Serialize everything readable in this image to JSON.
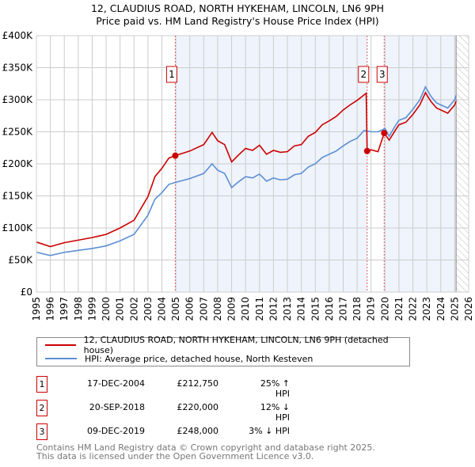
{
  "chart_data": {
    "type": "line",
    "title": "12, CLAUDIUS ROAD, NORTH HYKEHAM, LINCOLN, LN6 9PH",
    "subtitle": "Price paid vs. HM Land Registry's House Price Index (HPI)",
    "xlim": [
      1995,
      2026
    ],
    "ylim": [
      0,
      400000
    ],
    "x_ticks": [
      "1995",
      "1996",
      "1997",
      "1998",
      "1999",
      "2000",
      "2001",
      "2002",
      "2003",
      "2004",
      "2005",
      "2006",
      "2007",
      "2008",
      "2009",
      "2010",
      "2011",
      "2012",
      "2013",
      "2014",
      "2015",
      "2016",
      "2017",
      "2018",
      "2019",
      "2020",
      "2021",
      "2022",
      "2023",
      "2024",
      "2025",
      "2026"
    ],
    "y_ticks": [
      {
        "v": 0,
        "l": "£0"
      },
      {
        "v": 50000,
        "l": "£50K"
      },
      {
        "v": 100000,
        "l": "£100K"
      },
      {
        "v": 150000,
        "l": "£150K"
      },
      {
        "v": 200000,
        "l": "£200K"
      },
      {
        "v": 250000,
        "l": "£250K"
      },
      {
        "v": 300000,
        "l": "£300K"
      },
      {
        "v": 350000,
        "l": "£350K"
      },
      {
        "v": 400000,
        "l": "£400K"
      }
    ],
    "grid": true,
    "series": [
      {
        "name": "12, CLAUDIUS ROAD, NORTH HYKEHAM, LINCOLN, LN6 9PH (detached house)",
        "color": "#cc0000",
        "x": [
          1995,
          1996,
          1997,
          1998,
          1999,
          2000,
          2001,
          2002,
          2003,
          2003.5,
          2004,
          2004.5,
          2004.96,
          2006,
          2007,
          2007.6,
          2008,
          2008.5,
          2009,
          2009.5,
          2010,
          2010.5,
          2011,
          2011.5,
          2012,
          2012.5,
          2013,
          2013.5,
          2014,
          2014.5,
          2015,
          2015.5,
          2016,
          2016.5,
          2017,
          2017.5,
          2018,
          2018.65,
          2018.72,
          2019,
          2019.5,
          2019.94,
          2020.3,
          2020.7,
          2021,
          2021.5,
          2022,
          2022.5,
          2022.9,
          2023.3,
          2023.7,
          2024,
          2024.5,
          2025,
          2025.1
        ],
        "y": [
          78000,
          71000,
          77000,
          81000,
          85000,
          90000,
          100000,
          112000,
          149000,
          180000,
          193000,
          209000,
          212750,
          220000,
          230000,
          249000,
          236000,
          230000,
          203000,
          214000,
          224000,
          221000,
          229000,
          215000,
          221000,
          218000,
          219000,
          228000,
          230000,
          243000,
          249000,
          261000,
          267000,
          274000,
          284000,
          292000,
          299000,
          310000,
          220000,
          222000,
          219000,
          248000,
          237000,
          251000,
          261000,
          265000,
          277000,
          292000,
          311000,
          297000,
          287000,
          284000,
          279000,
          292000,
          298000
        ]
      },
      {
        "name": "HPI: Average price, detached house, North Kesteven",
        "color": "#5b8fd4",
        "x": [
          1995,
          1996,
          1997,
          1998,
          1999,
          2000,
          2001,
          2002,
          2003,
          2003.5,
          2004,
          2004.5,
          2004.96,
          2006,
          2007,
          2007.6,
          2008,
          2008.5,
          2009,
          2009.5,
          2010,
          2010.5,
          2011,
          2011.5,
          2012,
          2012.5,
          2013,
          2013.5,
          2014,
          2014.5,
          2015,
          2015.5,
          2016,
          2016.5,
          2017,
          2017.5,
          2018,
          2018.5,
          2019,
          2019.5,
          2020,
          2020.3,
          2020.7,
          2021,
          2021.5,
          2022,
          2022.5,
          2022.9,
          2023.3,
          2023.7,
          2024,
          2024.5,
          2025,
          2025.1
        ],
        "y": [
          62000,
          57000,
          62000,
          65000,
          68000,
          72000,
          80000,
          90000,
          120000,
          145000,
          155000,
          168000,
          171000,
          177000,
          185000,
          200000,
          190000,
          185000,
          163000,
          172000,
          180000,
          178000,
          184000,
          173000,
          178000,
          175000,
          176000,
          183000,
          185000,
          195000,
          200000,
          210000,
          215000,
          220000,
          228000,
          235000,
          240000,
          252000,
          250000,
          250000,
          255000,
          243000,
          258000,
          268000,
          272000,
          285000,
          300000,
          320000,
          305000,
          295000,
          292000,
          287000,
          300000,
          307000
        ]
      }
    ],
    "sales": [
      {
        "n": "1",
        "x": 2004.96,
        "y": 212750,
        "date": "17-DEC-2004",
        "price": "£212,750",
        "hpi": "25% ↑ HPI"
      },
      {
        "n": "2",
        "x": 2018.72,
        "y": 220000,
        "date": "20-SEP-2018",
        "price": "£220,000",
        "hpi": "12% ↓ HPI"
      },
      {
        "n": "3",
        "x": 2019.94,
        "y": 248000,
        "date": "09-DEC-2019",
        "price": "£248,000",
        "hpi": "3% ↓ HPI"
      }
    ],
    "shaded_ranges": [
      [
        2004.96,
        2018.72
      ],
      [
        2019.94,
        2025.1
      ]
    ],
    "forecast_from": 2025.1
  },
  "legend": {
    "property": "12, CLAUDIUS ROAD, NORTH HYKEHAM, LINCOLN, LN6 9PH (detached house)",
    "hpi": "HPI: Average price, detached house, North Kesteven"
  },
  "footer": {
    "line1": "Contains HM Land Registry data © Crown copyright and database right 2025.",
    "line2": "This data is licensed under the Open Government Licence v3.0."
  }
}
